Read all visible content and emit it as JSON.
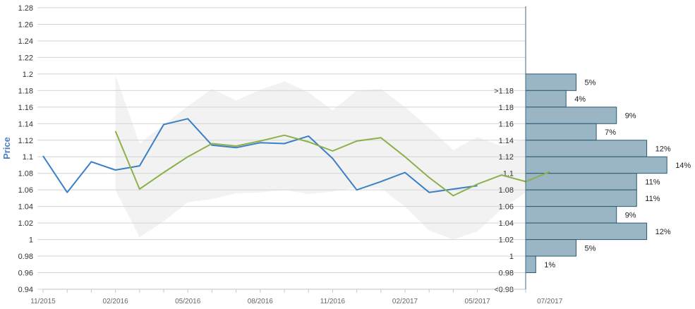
{
  "chart_data": {
    "type": "line",
    "title": "",
    "ylabel": "Price",
    "xlabel": "",
    "ylim": [
      0.94,
      1.28
    ],
    "y_ticks": [
      "0.94",
      "0.96",
      "0.98",
      "1",
      "1.02",
      "1.04",
      "1.06",
      "1.08",
      "1.1",
      "1.12",
      "1.14",
      "1.16",
      "1.18",
      "1.2",
      "1.22",
      "1.24",
      "1.26",
      "1.28"
    ],
    "x_tick_labels": [
      "11/2015",
      "02/2016",
      "05/2016",
      "08/2016",
      "11/2016",
      "02/2017",
      "05/2017",
      "07/2017"
    ],
    "x_month_count": 21,
    "grid": true,
    "series": [
      {
        "color": "#3a7fc8",
        "values": [
          {
            "x": "2015-11",
            "y": 1.101
          },
          {
            "x": "2015-12",
            "y": 1.057
          },
          {
            "x": "2016-01",
            "y": 1.094
          },
          {
            "x": "2016-02",
            "y": 1.084
          },
          {
            "x": "2016-03",
            "y": 1.089
          },
          {
            "x": "2016-04",
            "y": 1.139
          },
          {
            "x": "2016-05",
            "y": 1.146
          },
          {
            "x": "2016-06",
            "y": 1.114
          },
          {
            "x": "2016-07",
            "y": 1.111
          },
          {
            "x": "2016-08",
            "y": 1.117
          },
          {
            "x": "2016-09",
            "y": 1.116
          },
          {
            "x": "2016-10",
            "y": 1.125
          },
          {
            "x": "2016-11",
            "y": 1.098
          },
          {
            "x": "2016-12",
            "y": 1.06
          },
          {
            "x": "2017-01",
            "y": 1.07
          },
          {
            "x": "2017-02",
            "y": 1.081
          },
          {
            "x": "2017-03",
            "y": 1.057
          },
          {
            "x": "2017-04",
            "y": 1.061
          },
          {
            "x": "2017-05",
            "y": 1.065
          }
        ]
      },
      {
        "color": "#8cb04a",
        "values": [
          {
            "x": "2016-02",
            "y": 1.131
          },
          {
            "x": "2016-03",
            "y": 1.061
          },
          {
            "x": "2016-04",
            "y": 1.081
          },
          {
            "x": "2016-05",
            "y": 1.1
          },
          {
            "x": "2016-06",
            "y": 1.116
          },
          {
            "x": "2016-07",
            "y": 1.113
          },
          {
            "x": "2016-08",
            "y": 1.119
          },
          {
            "x": "2016-09",
            "y": 1.126
          },
          {
            "x": "2016-10",
            "y": 1.118
          },
          {
            "x": "2016-11",
            "y": 1.107
          },
          {
            "x": "2016-12",
            "y": 1.119
          },
          {
            "x": "2017-01",
            "y": 1.123
          },
          {
            "x": "2017-02",
            "y": 1.1
          },
          {
            "x": "2017-03",
            "y": 1.075
          },
          {
            "x": "2017-04",
            "y": 1.053
          },
          {
            "x": "2017-05",
            "y": 1.067
          },
          {
            "x": "2017-06",
            "y": 1.078
          },
          {
            "x": "2017-07",
            "y": 1.07
          },
          {
            "x": "2017-08",
            "y": 1.082
          }
        ]
      }
    ],
    "band": {
      "color": "#f2f2f2",
      "values": [
        {
          "x": "2016-02",
          "low": 1.06,
          "high": 1.199
        },
        {
          "x": "2016-03",
          "low": 1.003,
          "high": 1.116
        },
        {
          "x": "2016-04",
          "low": 1.022,
          "high": 1.139
        },
        {
          "x": "2016-05",
          "low": 1.045,
          "high": 1.161
        },
        {
          "x": "2016-06",
          "low": 1.049,
          "high": 1.182
        },
        {
          "x": "2016-07",
          "low": 1.056,
          "high": 1.168
        },
        {
          "x": "2016-08",
          "low": 1.057,
          "high": 1.181
        },
        {
          "x": "2016-09",
          "low": 1.06,
          "high": 1.191
        },
        {
          "x": "2016-10",
          "low": 1.055,
          "high": 1.178
        },
        {
          "x": "2016-11",
          "low": 1.058,
          "high": 1.156
        },
        {
          "x": "2016-12",
          "low": 1.063,
          "high": 1.18
        },
        {
          "x": "2017-01",
          "low": 1.062,
          "high": 1.182
        },
        {
          "x": "2017-02",
          "low": 1.04,
          "high": 1.16
        },
        {
          "x": "2017-03",
          "low": 1.011,
          "high": 1.135
        },
        {
          "x": "2017-04",
          "low": 1.0,
          "high": 1.108
        },
        {
          "x": "2017-05",
          "low": 1.01,
          "high": 1.124
        },
        {
          "x": "2017-06",
          "low": 1.037,
          "high": 1.113
        },
        {
          "x": "2017-07",
          "low": 1.057,
          "high": 1.122
        },
        {
          "x": "2017-08",
          "low": 1.07,
          "high": 1.137
        }
      ]
    },
    "histogram": {
      "color": "#9ab6c5",
      "border": "#2c5a72",
      "bins": [
        {
          "label": ">1.18",
          "pct": 5,
          "text": "5%"
        },
        {
          "label": "1.18",
          "pct": 4,
          "text": "4%"
        },
        {
          "label": "1.16",
          "pct": 9,
          "text": "9%"
        },
        {
          "label": "1.14",
          "pct": 7,
          "text": "7%"
        },
        {
          "label": "1.12",
          "pct": 12,
          "text": "12%"
        },
        {
          "label": "1.1",
          "pct": 14,
          "text": "14%"
        },
        {
          "label": "1.08",
          "pct": 11,
          "text": "11%"
        },
        {
          "label": "1.06",
          "pct": 11,
          "text": "11%"
        },
        {
          "label": "1.04",
          "pct": 9,
          "text": "9%"
        },
        {
          "label": "1.02",
          "pct": 12,
          "text": "12%"
        },
        {
          "label": "1",
          "pct": 5,
          "text": "5%"
        },
        {
          "label": "0.98",
          "pct": 1,
          "text": "1%"
        },
        {
          "label": "<0.98",
          "pct": 0,
          "text": ""
        }
      ]
    }
  }
}
